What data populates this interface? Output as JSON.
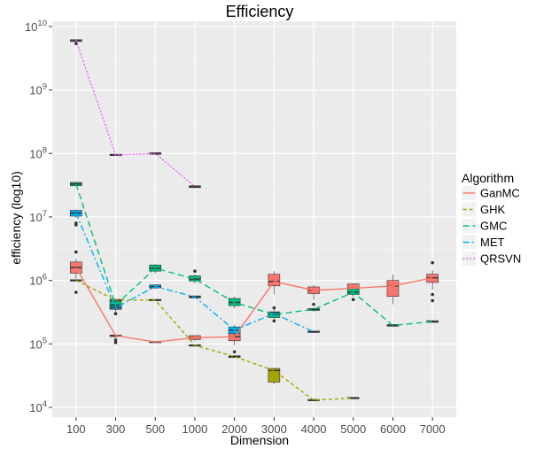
{
  "chart_data": {
    "type": "line",
    "title": "Efficiency",
    "xlabel": "Dimension",
    "ylabel": "efficiency (log10)",
    "y_scale": "log10",
    "ylim": [
      7020,
      12100000000
    ],
    "grid": true,
    "categories": [
      "100",
      "300",
      "500",
      "1000",
      "2000",
      "3000",
      "4000",
      "5000",
      "6000",
      "7000"
    ],
    "yticks": [
      10000,
      100000,
      1000000,
      10000000,
      100000000,
      1000000000,
      10000000000
    ],
    "ytick_labels": [
      {
        "base": "10",
        "exp": "4"
      },
      {
        "base": "10",
        "exp": "5"
      },
      {
        "base": "10",
        "exp": "6"
      },
      {
        "base": "10",
        "exp": "7"
      },
      {
        "base": "10",
        "exp": "8"
      },
      {
        "base": "10",
        "exp": "9"
      },
      {
        "base": "10",
        "exp": "10"
      }
    ],
    "legend": {
      "title": "Algorithm",
      "position": "right"
    },
    "series": [
      {
        "name": "GanMC",
        "color": "#F8766D",
        "values": [
          1600000,
          135000,
          107000,
          125000,
          130000,
          960000,
          700000,
          750000,
          820000,
          1100000
        ],
        "boxes": [
          {
            "q1": 1300000,
            "q3": 1950000,
            "lo": 1050000,
            "hi": 2200000,
            "outliers": [
              2800000,
              650000
            ]
          },
          {
            "q1": 130000,
            "q3": 138000,
            "lo": 125000,
            "hi": 142000,
            "outliers": [
              115000,
              105000
            ]
          },
          {
            "q1": 105000,
            "q3": 109000,
            "lo": 104000,
            "hi": 110000,
            "outliers": []
          },
          {
            "q1": 117000,
            "q3": 135000,
            "lo": 112000,
            "hi": 138000,
            "outliers": []
          },
          {
            "q1": 112000,
            "q3": 160000,
            "lo": 95000,
            "hi": 185000,
            "outliers": [
              75000
            ]
          },
          {
            "q1": 820000,
            "q3": 1250000,
            "lo": 600000,
            "hi": 1400000,
            "outliers": []
          },
          {
            "q1": 620000,
            "q3": 790000,
            "lo": 500000,
            "hi": 850000,
            "outliers": []
          },
          {
            "q1": 640000,
            "q3": 880000,
            "lo": 560000,
            "hi": 900000,
            "outliers": []
          },
          {
            "q1": 560000,
            "q3": 1000000,
            "lo": 420000,
            "hi": 1250000,
            "outliers": []
          },
          {
            "q1": 930000,
            "q3": 1250000,
            "lo": 720000,
            "hi": 1450000,
            "outliers": [
              1900000,
              600000,
              480000
            ]
          }
        ]
      },
      {
        "name": "GHK",
        "color": "#A3A500",
        "values": [
          1000000,
          490000,
          490000,
          95000,
          63000,
          38000,
          13000,
          14000,
          null,
          null
        ],
        "boxes": [
          {
            "q1": 980000,
            "q3": 1020000,
            "lo": 970000,
            "hi": 1030000,
            "outliers": []
          },
          {
            "q1": 480000,
            "q3": 500000,
            "lo": 475000,
            "hi": 505000,
            "outliers": []
          },
          {
            "q1": 480000,
            "q3": 500000,
            "lo": 475000,
            "hi": 505000,
            "outliers": []
          },
          {
            "q1": 92000,
            "q3": 97000,
            "lo": 90000,
            "hi": 99000,
            "outliers": []
          },
          {
            "q1": 61000,
            "q3": 65000,
            "lo": 60000,
            "hi": 66000,
            "outliers": []
          },
          {
            "q1": 25000,
            "q3": 41000,
            "lo": 23000,
            "hi": 42000,
            "outliers": []
          },
          {
            "q1": 12800,
            "q3": 13200,
            "lo": 12700,
            "hi": 13300,
            "outliers": []
          },
          {
            "q1": 13800,
            "q3": 14200,
            "lo": 13700,
            "hi": 14300,
            "outliers": []
          },
          null,
          null
        ]
      },
      {
        "name": "GMC",
        "color": "#00BF7D",
        "values": [
          33000000,
          410000,
          1550000,
          1050000,
          450000,
          290000,
          350000,
          650000,
          195000,
          225000
        ],
        "boxes": [
          {
            "q1": 31000000,
            "q3": 35000000,
            "lo": 30000000,
            "hi": 36000000,
            "outliers": []
          },
          {
            "q1": 360000,
            "q3": 470000,
            "lo": 320000,
            "hi": 520000,
            "outliers": [
              300000
            ]
          },
          {
            "q1": 1400000,
            "q3": 1750000,
            "lo": 1300000,
            "hi": 1800000,
            "outliers": []
          },
          {
            "q1": 980000,
            "q3": 1180000,
            "lo": 900000,
            "hi": 1250000,
            "outliers": [
              1400000
            ]
          },
          {
            "q1": 400000,
            "q3": 520000,
            "lo": 360000,
            "hi": 560000,
            "outliers": []
          },
          {
            "q1": 260000,
            "q3": 320000,
            "lo": 240000,
            "hi": 360000,
            "outliers": [
              370000,
              230000
            ]
          },
          {
            "q1": 335000,
            "q3": 360000,
            "lo": 320000,
            "hi": 370000,
            "outliers": [
              420000
            ]
          },
          {
            "q1": 600000,
            "q3": 740000,
            "lo": 560000,
            "hi": 780000,
            "outliers": [
              500000
            ]
          },
          {
            "q1": 190000,
            "q3": 202000,
            "lo": 185000,
            "hi": 205000,
            "outliers": []
          },
          {
            "q1": 218000,
            "q3": 232000,
            "lo": 212000,
            "hi": 236000,
            "outliers": []
          }
        ]
      },
      {
        "name": "MET",
        "color": "#00B0F6",
        "values": [
          11500000,
          370000,
          800000,
          550000,
          165000,
          300000,
          155000,
          null,
          null,
          null
        ],
        "boxes": [
          {
            "q1": 10300000,
            "q3": 12700000,
            "lo": 9800000,
            "hi": 13000000,
            "outliers": [
              8000000,
              7500000
            ]
          },
          {
            "q1": 350000,
            "q3": 390000,
            "lo": 340000,
            "hi": 400000,
            "outliers": [
              300000
            ]
          },
          {
            "q1": 760000,
            "q3": 850000,
            "lo": 740000,
            "hi": 870000,
            "outliers": []
          },
          {
            "q1": 530000,
            "q3": 570000,
            "lo": 520000,
            "hi": 580000,
            "outliers": []
          },
          {
            "q1": 145000,
            "q3": 185000,
            "lo": 125000,
            "hi": 200000,
            "outliers": []
          },
          {
            "q1": 290000,
            "q3": 310000,
            "lo": 285000,
            "hi": 315000,
            "outliers": []
          },
          {
            "q1": 152000,
            "q3": 158000,
            "lo": 150000,
            "hi": 160000,
            "outliers": []
          },
          null,
          null,
          null
        ]
      },
      {
        "name": "QRSVN",
        "color": "#E76BF3",
        "values": [
          6000000000,
          95000000,
          100000000,
          30000000,
          null,
          null,
          null,
          null,
          null,
          null
        ],
        "boxes": [
          {
            "q1": 5800000000,
            "q3": 6200000000,
            "lo": 5700000000,
            "hi": 6300000000,
            "outliers": [
              5400000000
            ]
          },
          {
            "q1": 93000000,
            "q3": 97000000,
            "lo": 92000000,
            "hi": 98000000,
            "outliers": []
          },
          {
            "q1": 97000000,
            "q3": 103000000,
            "lo": 95000000,
            "hi": 105000000,
            "outliers": []
          },
          {
            "q1": 29000000,
            "q3": 31000000,
            "lo": 28500000,
            "hi": 31500000,
            "outliers": []
          },
          null,
          null,
          null,
          null,
          null,
          null
        ]
      }
    ]
  }
}
